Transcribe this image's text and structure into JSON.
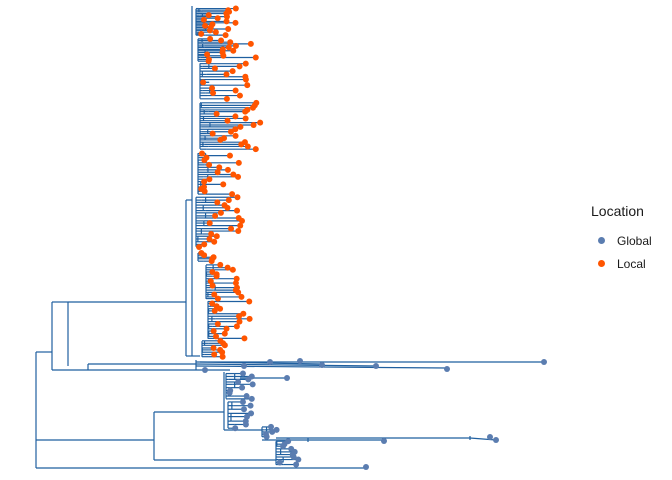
{
  "legend": {
    "title": "Location",
    "items": [
      {
        "label": "Global",
        "color": "#5b7db0"
      },
      {
        "label": "Local",
        "color": "#ff5500"
      }
    ]
  },
  "colors": {
    "branch": "#1f5f9f",
    "global_tip": "#5b7db0",
    "local_tip": "#ff5500"
  }
}
